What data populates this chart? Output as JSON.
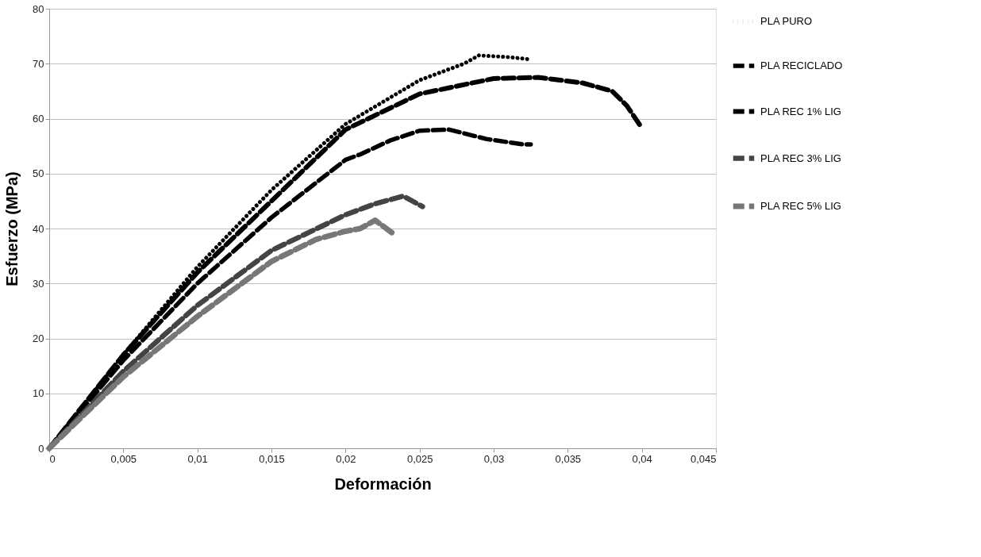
{
  "chart_data": {
    "type": "line",
    "xlabel": "Deformación",
    "ylabel": "Esfuerzo (MPa)",
    "xlim": [
      0,
      0.045
    ],
    "ylim": [
      0,
      80
    ],
    "xticks": [
      0,
      {
        "value": 0.005,
        "label": "0,005"
      },
      {
        "value": 0.01,
        "label": "0,01"
      },
      {
        "value": 0.015,
        "label": "0,015"
      },
      {
        "value": 0.02,
        "label": "0,02"
      },
      {
        "value": 0.025,
        "label": "0,025"
      },
      {
        "value": 0.03,
        "label": "0,03"
      },
      {
        "value": 0.035,
        "label": "0,035"
      },
      {
        "value": 0.04,
        "label": "0,04"
      },
      {
        "value": 0.045,
        "label": "0,045"
      }
    ],
    "yticks": [
      0,
      10,
      20,
      30,
      40,
      50,
      60,
      70,
      80
    ],
    "grid": "y",
    "legend": "right",
    "series": [
      {
        "name": "PLA PURO",
        "color": "#000000",
        "line_style": "dotted",
        "x": [
          0,
          0.005,
          0.01,
          0.015,
          0.02,
          0.025,
          0.028,
          0.029,
          0.031,
          0.0324
        ],
        "values": [
          0,
          17,
          33,
          47,
          59,
          67,
          70,
          71.5,
          71.2,
          70.8
        ]
      },
      {
        "name": "PLA RECICLADO",
        "color": "#000000",
        "line_style": "dashed",
        "x": [
          0,
          0.005,
          0.01,
          0.015,
          0.02,
          0.021,
          0.023,
          0.025,
          0.027,
          0.0295,
          0.032,
          0.0325
        ],
        "values": [
          0,
          16,
          30,
          42,
          52.5,
          53.5,
          56,
          57.8,
          58,
          56.3,
          55.3,
          55.3
        ]
      },
      {
        "name": "PLA REC 1% LIG",
        "color": "#000000",
        "line_style": "dashed",
        "x": [
          0,
          0.005,
          0.01,
          0.015,
          0.02,
          0.025,
          0.03,
          0.033,
          0.036,
          0.038,
          0.039,
          0.04
        ],
        "values": [
          0,
          17,
          32,
          45,
          58,
          64.5,
          67.3,
          67.5,
          66.5,
          65,
          62.3,
          58.3
        ]
      },
      {
        "name": "PLA REC 3% LIG",
        "color": "#444444",
        "line_style": "dashed",
        "x": [
          0,
          0.005,
          0.01,
          0.015,
          0.02,
          0.022,
          0.0239,
          0.0252
        ],
        "values": [
          0,
          14,
          26,
          36,
          42.5,
          44.5,
          45.9,
          44
        ]
      },
      {
        "name": "PLA REC 5% LIG",
        "color": "#777777",
        "line_style": "dashed",
        "x": [
          0,
          0.005,
          0.01,
          0.015,
          0.018,
          0.02,
          0.021,
          0.022,
          0.0233
        ],
        "values": [
          0,
          13,
          24,
          34,
          38,
          39.5,
          40,
          41.5,
          38.9
        ]
      }
    ]
  }
}
